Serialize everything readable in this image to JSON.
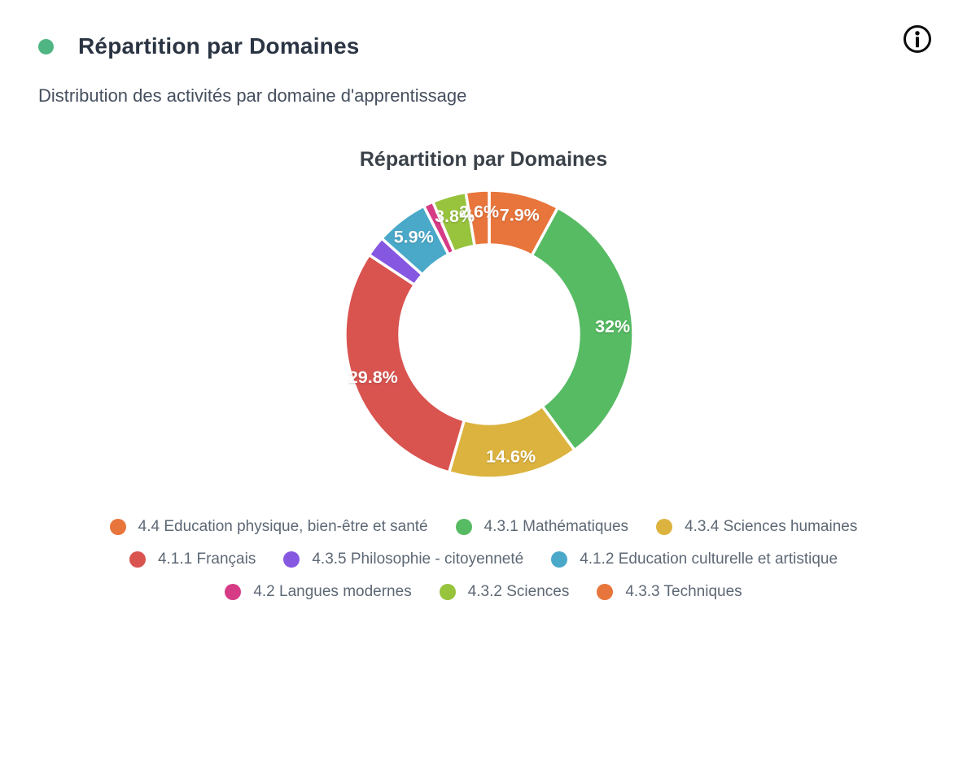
{
  "header": {
    "title": "Répartition par Domaines",
    "bullet_color": "#4FB583",
    "info_icon": "info-circle",
    "icon_color": "#0C0C0C"
  },
  "subtitle": "Distribution des activités par domaine d'apprentissage",
  "chart_data": {
    "type": "pie",
    "variant": "donut",
    "title": "Répartition par Domaines",
    "legend_position": "bottom",
    "start_angle": "top",
    "direction": "clockwise",
    "inner_radius_px": 110,
    "outer_radius_px": 177,
    "label_radius_px": 152,
    "slice_border_color": "#ffffff",
    "label_color": "#ffffff",
    "slices": [
      {
        "name": "4.4 Education physique, bien-être et santé",
        "value_pct": 7.9,
        "label": "7.9%",
        "color": "#E8753B"
      },
      {
        "name": "4.3.1 Mathématiques",
        "value_pct": 32,
        "label": "32%",
        "color": "#57BB63"
      },
      {
        "name": "4.3.4 Sciences humaines",
        "value_pct": 14.6,
        "label": "14.6%",
        "color": "#DCB33F"
      },
      {
        "name": "4.1.1 Français",
        "value_pct": 29.8,
        "label": "29.8%",
        "color": "#D9534F"
      },
      {
        "name": "4.3.5 Philosophie - citoyenneté",
        "value_pct": 2.3,
        "label": "",
        "color": "#8657E1"
      },
      {
        "name": "4.1.2 Education culturelle et artistique",
        "value_pct": 5.9,
        "label": "5.9%",
        "color": "#4AA9C9"
      },
      {
        "name": "4.2 Langues modernes",
        "value_pct": 1.1,
        "label": "",
        "color": "#D63C86"
      },
      {
        "name": "4.3.2 Sciences",
        "value_pct": 3.8,
        "label": "3.8%",
        "color": "#97C33D"
      },
      {
        "name": "4.3.3 Techniques",
        "value_pct": 2.6,
        "label": "2.6%",
        "color": "#E8753B"
      }
    ]
  }
}
